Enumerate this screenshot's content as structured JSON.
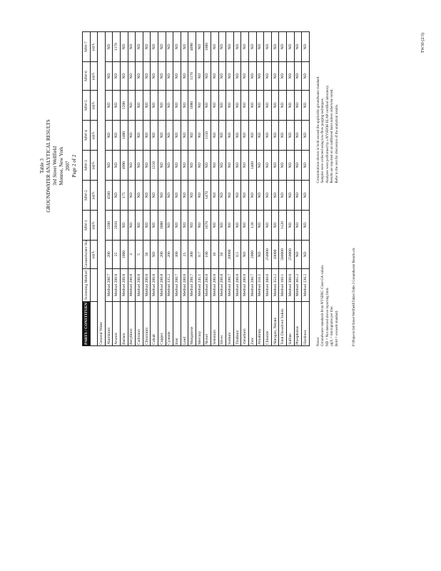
{
  "header": {
    "lines": [
      "Table 3",
      "GROUNDWATER ANALYTICAL RESULTS",
      "3rd Street Wellfield",
      "Monroe, New York",
      "2007",
      "Page 2 of 2"
    ]
  },
  "table": {
    "head": [
      "PARTS / CONSTITUENT",
      "Screening Method",
      "Groundwater Standard (µg/L)",
      "MW-1",
      "MW-2",
      "MW-3",
      "MW-4",
      "MW-5",
      "MW-6",
      "MW-7"
    ],
    "units": [
      "",
      "",
      "µg/L",
      "µg/L",
      "µg/L",
      "µg/L",
      "µg/L",
      "µg/L",
      "µg/L",
      "µg/L"
    ],
    "section": "General Water",
    "rows": [
      [
        "Aluminum",
        "Method 200.7",
        "200",
        "2200",
        "4560",
        "ND",
        "ND",
        "ND",
        "ND",
        "ND"
      ],
      [
        "Arsenic",
        "Method 200.8",
        "25",
        "2010",
        "ND",
        "ND",
        "ND",
        "ND",
        "ND",
        "1170"
      ],
      [
        "Barium",
        "Method 200.8",
        "1000",
        "ND",
        "175",
        "4990",
        "1480",
        "1200",
        "ND",
        "ND"
      ],
      [
        "Beryllium",
        "Method 200.8",
        "3",
        "ND",
        "ND",
        "ND",
        "ND",
        "ND",
        "ND",
        "ND"
      ],
      [
        "Cadmium",
        "Method 200.8",
        "5",
        "ND",
        "ND",
        "ND",
        "ND",
        "ND",
        "ND",
        "ND"
      ],
      [
        "Chromium",
        "Method 200.8",
        "50",
        "ND",
        "ND",
        "ND",
        "ND",
        "ND",
        "ND",
        "ND"
      ],
      [
        "Cobalt",
        "Method 200.8",
        "ND",
        "ND",
        "ND",
        "1210",
        "ND",
        "ND",
        "ND",
        "ND"
      ],
      [
        "Copper",
        "Method 200.8",
        "200",
        "3080",
        "ND",
        "ND",
        "ND",
        "ND",
        "ND",
        "ND"
      ],
      [
        "Cyanide",
        "Method 335.2",
        "200",
        "ND",
        "ND",
        "ND",
        "ND",
        "ND",
        "ND",
        "ND"
      ],
      [
        "Iron",
        "Method 200.7",
        "300",
        "ND",
        "ND",
        "ND",
        "ND",
        "ND",
        "ND",
        "ND"
      ],
      [
        "Lead",
        "Method 200.8",
        "25",
        "ND",
        "ND",
        "ND",
        "ND",
        "ND",
        "ND",
        "ND"
      ],
      [
        "Manganese",
        "Method 200.7",
        "300",
        "ND",
        "ND",
        "ND",
        "ND",
        "1080",
        "1170",
        "4090"
      ],
      [
        "Mercury",
        "Method 245.1",
        "0.7",
        "ND",
        "ND",
        "ND",
        "ND",
        "ND",
        "ND",
        "ND"
      ],
      [
        "Nickel",
        "Method 200.8",
        "100",
        "1070",
        "1470",
        "ND",
        "1150",
        "ND",
        "ND",
        "1080"
      ],
      [
        "Selenium",
        "Method 200.8",
        "10",
        "ND",
        "ND",
        "ND",
        "ND",
        "ND",
        "ND",
        "ND"
      ],
      [
        "Silver",
        "Method 200.8",
        "50",
        "ND",
        "ND",
        "ND",
        "ND",
        "ND",
        "ND",
        "ND"
      ],
      [
        "Sodium",
        "Method 200.7",
        "20000",
        "ND",
        "ND",
        "ND",
        "ND",
        "ND",
        "ND",
        "ND"
      ],
      [
        "Thallium",
        "Method 200.8",
        "0.5",
        "ND",
        "ND",
        "ND",
        "ND",
        "ND",
        "ND",
        "ND"
      ],
      [
        "Vanadium",
        "Method 200.8",
        "ND",
        "ND",
        "ND",
        "ND",
        "ND",
        "ND",
        "ND",
        "ND"
      ],
      [
        "Zinc",
        "Method 200.7",
        "2000",
        "120",
        "ND",
        "1460",
        "ND",
        "ND",
        "ND",
        "ND"
      ],
      [
        "Alkalinity",
        "Method 310.1",
        "ND",
        "ND",
        "ND",
        "ND",
        "ND",
        "ND",
        "ND",
        "ND"
      ],
      [
        "Chloride",
        "Method 300.0",
        "250000",
        "ND",
        "ND",
        "ND",
        "ND",
        "ND",
        "ND",
        "ND"
      ],
      [
        "Nitrogen, Nitrate",
        "Method 353.2",
        "10000",
        "ND",
        "ND",
        "ND",
        "ND",
        "ND",
        "ND",
        "ND"
      ],
      [
        "Total Dissolved Solids",
        "Method 160.1",
        "500000",
        "1120",
        "ND",
        "ND",
        "ND",
        "ND",
        "ND",
        "ND"
      ],
      [
        "Sulfate",
        "Method 300.0",
        "250000",
        "ND",
        "ND",
        "ND",
        "ND",
        "ND",
        "ND",
        "ND"
      ],
      [
        "Phosphorus",
        "Method 365.2",
        "ND",
        "ND",
        "ND",
        "ND",
        "ND",
        "ND",
        "ND",
        "ND"
      ],
      [
        "Hardness",
        "Method 130.2",
        "ND",
        "ND",
        "ND",
        "ND",
        "ND",
        "ND",
        "ND",
        "ND"
      ]
    ]
  },
  "notes": {
    "left": [
      "Notes:",
      "Groundwater standards from NYSDEC Class GA values.",
      "ND = Not detected above reporting limit.",
      "µg/L = micrograms per liter.",
      "Bold = exceeds standard."
    ],
    "right": [
      "Concentrations shown in bold exceed the applicable groundwater standard.",
      "Samples were collected using low-flow purging techniques.",
      "Analyses were performed by a NYSDOH ELAP certified laboratory.",
      "Results are reported on an unfiltered basis unless otherwise noted.",
      "Refer to the text for discussion of the analytical results."
    ]
  },
  "footer": "P:\\Projects\\3rd Street Wellfield\\Tables\\Table 3 Groundwater Results.xls",
  "page_id": "TW30 (2/3)"
}
